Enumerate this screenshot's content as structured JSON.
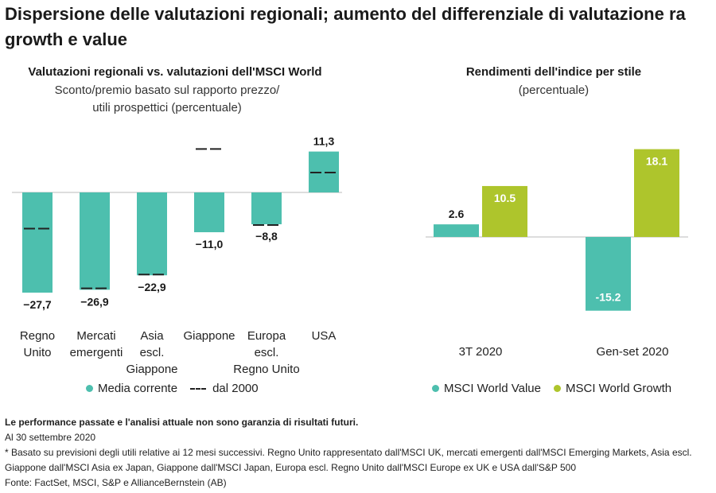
{
  "page": {
    "title": "Dispersione delle valutazioni regionali; aumento del differenziale di valutazione ra growth e value"
  },
  "colors": {
    "teal": "#4dbfae",
    "green": "#aec52c",
    "text": "#1a1a1a"
  },
  "chart_data": [
    {
      "type": "bar",
      "title": "Valutazioni regionali vs. valutazioni dell'MSCI World",
      "subtitle_line1": "Sconto/premio basato sul rapporto prezzo/",
      "subtitle_line2": "utili prospettici (percentuale)",
      "categories": [
        [
          "Regno",
          "Unito"
        ],
        [
          "Mercati",
          "emergenti"
        ],
        [
          "Asia",
          "escl.",
          "Giappone"
        ],
        [
          "Giappone"
        ],
        [
          "Europa",
          "escl.",
          "Regno Unito"
        ],
        [
          "USA"
        ]
      ],
      "series": [
        {
          "name": "Media corrente",
          "values": [
            -27.7,
            -26.9,
            -22.9,
            -11.0,
            -8.8,
            11.3
          ],
          "labels": [
            "−27,7",
            "−26,9",
            "−22,9",
            "−11,0",
            "−8,8",
            "11,3"
          ]
        },
        {
          "name": "dal 2000",
          "values": [
            -10.0,
            -26.5,
            -22.7,
            12.0,
            -9.0,
            5.5
          ]
        }
      ],
      "legend": [
        "Media corrente",
        "dal 2000"
      ],
      "ylim": [
        -30,
        12
      ]
    },
    {
      "type": "bar",
      "title": "Rendimenti dell'indice per stile",
      "subtitle": "(percentuale)",
      "categories": [
        "3T 2020",
        "Gen-set 2020"
      ],
      "series": [
        {
          "name": "MSCI World Value",
          "values": [
            2.6,
            -15.2
          ],
          "labels": [
            "2.6",
            "-15.2"
          ]
        },
        {
          "name": "MSCI World Growth",
          "values": [
            10.5,
            18.1
          ],
          "labels": [
            "10.5",
            "18.1"
          ]
        }
      ],
      "legend": [
        "MSCI World Value",
        "MSCI World Growth"
      ],
      "ylim": [
        -20,
        20
      ]
    }
  ],
  "footer": {
    "disclaimer": "Le performance passate e l'analisi attuale non sono garanzia di risultati futuri.",
    "date": "Al 30 settembre 2020",
    "note1": "* Basato su previsioni degli utili relative ai 12 mesi successivi. Regno Unito rappresentato dall'MSCI UK, mercati emergenti dall'MSCI Emerging Markets, Asia escl.",
    "note2": "Giappone dall'MSCI Asia ex Japan, Giappone dall'MSCI Japan, Europa escl. Regno Unito dall'MSCI Europe ex UK e USA dall'S&P 500",
    "source": "Fonte: FactSet, MSCI, S&P e AllianceBernstein (AB)"
  }
}
